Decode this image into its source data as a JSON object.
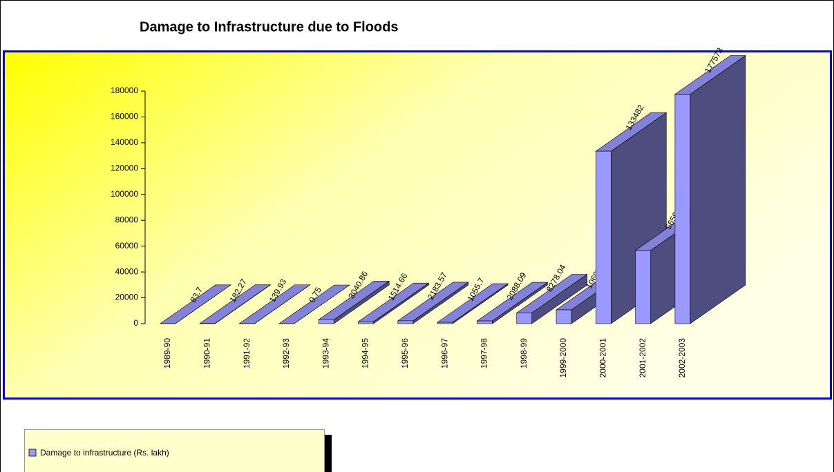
{
  "chart_data": {
    "type": "bar3d",
    "title": "Damage to Infrastructure due to Floods",
    "categories": [
      "1989-90",
      "1990-91",
      "1991-92",
      "1992-93",
      "1993-94",
      "1994-95",
      "1995-96",
      "1996-97",
      "1997-98",
      "1998-99",
      "1999-2000",
      "2000-2001",
      "2001-2002",
      "2002-2003"
    ],
    "series": [
      {
        "name": "Damage to infrastructure (Rs. lakh)",
        "color": "#9999ff",
        "values": [
          83.7,
          182.27,
          139.93,
          0.75,
          3040.86,
          1514.66,
          2183.57,
          1055.7,
          2088.09,
          8278.04,
          10697.83,
          133482,
          56590,
          177573
        ]
      }
    ],
    "ylim": [
      0,
      180000
    ],
    "yticks": [
      0,
      20000,
      40000,
      60000,
      80000,
      100000,
      120000,
      140000,
      160000,
      180000
    ]
  }
}
